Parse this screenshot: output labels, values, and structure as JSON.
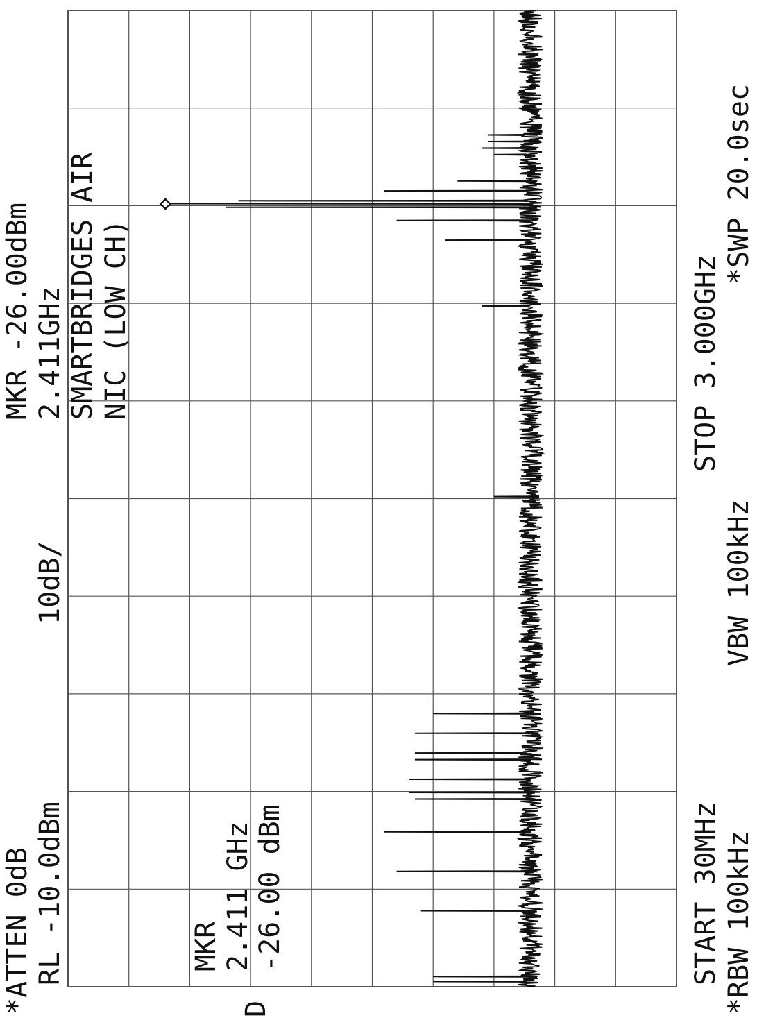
{
  "header": {
    "atten": "*ATTEN 0dB",
    "rl": "RL -10.0dBm",
    "scale": "10dB/",
    "mkr_label": "MKR -26.00dBm",
    "mkr_freq": "2.411GHz"
  },
  "annotation": {
    "line1": "SMARTBRIDGES AIR",
    "line2": "NIC (LOW CH)"
  },
  "marker_box": {
    "line1": "MKR",
    "line2": "2.411  GHz",
    "line3": "-26.00  dBm"
  },
  "mode_letter": "D",
  "footer": {
    "start": "START 30MHz",
    "stop": "STOP 3.000GHz",
    "rbw": "*RBW 100kHz",
    "vbw": "VBW 100kHz",
    "swp": "*SWP 20.0sec"
  },
  "chart_data": {
    "type": "line",
    "title": "",
    "xlabel": "",
    "ylabel": "",
    "x_unit": "GHz",
    "y_unit": "dBm",
    "xlim": [
      0.03,
      3.0
    ],
    "ylim": [
      -110,
      -10
    ],
    "grid": true,
    "noise_floor_dBm": -86,
    "marker": {
      "x": 2.411,
      "y": -26.0
    },
    "peaks": [
      {
        "x": 0.045,
        "y": -70
      },
      {
        "x": 0.06,
        "y": -70
      },
      {
        "x": 0.26,
        "y": -68
      },
      {
        "x": 0.38,
        "y": -64
      },
      {
        "x": 0.5,
        "y": -62
      },
      {
        "x": 0.6,
        "y": -67
      },
      {
        "x": 0.62,
        "y": -66
      },
      {
        "x": 0.66,
        "y": -66
      },
      {
        "x": 0.72,
        "y": -67
      },
      {
        "x": 0.74,
        "y": -67
      },
      {
        "x": 0.8,
        "y": -67
      },
      {
        "x": 0.86,
        "y": -70
      },
      {
        "x": 1.52,
        "y": -80
      },
      {
        "x": 2.1,
        "y": -78
      },
      {
        "x": 2.3,
        "y": -72
      },
      {
        "x": 2.36,
        "y": -64
      },
      {
        "x": 2.4,
        "y": -36
      },
      {
        "x": 2.411,
        "y": -26
      },
      {
        "x": 2.42,
        "y": -38
      },
      {
        "x": 2.45,
        "y": -62
      },
      {
        "x": 2.48,
        "y": -74
      },
      {
        "x": 2.56,
        "y": -80
      },
      {
        "x": 2.58,
        "y": -78
      },
      {
        "x": 2.6,
        "y": -79
      },
      {
        "x": 2.62,
        "y": -79
      }
    ]
  }
}
